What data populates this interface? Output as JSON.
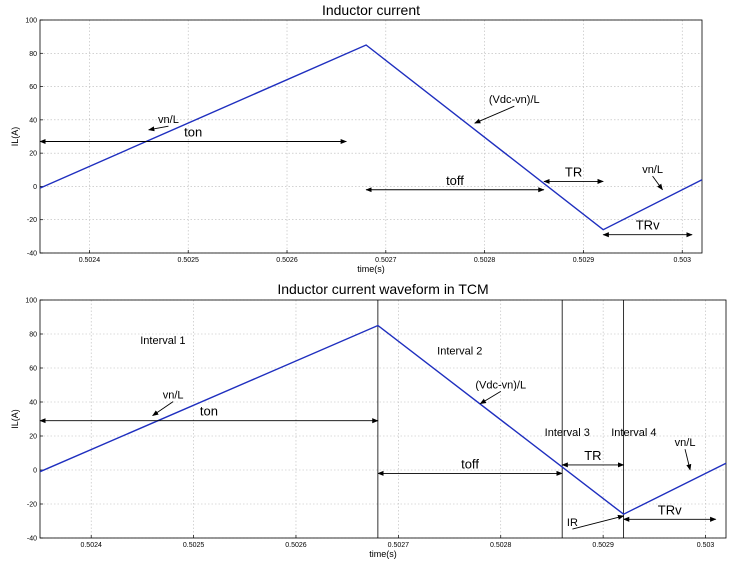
{
  "chart_data": [
    {
      "type": "line",
      "title": "Inductor current",
      "xlabel": "time(s)",
      "ylabel": "IL(A)",
      "xlim": [
        0.50235,
        0.50302
      ],
      "ylim": [
        -40,
        100
      ],
      "xticks": [
        0.5024,
        0.5025,
        0.5026,
        0.5027,
        0.5028,
        0.5029,
        0.503
      ],
      "xtick_labels": [
        "0.5024",
        "0.5025",
        "0.5026",
        "0.5027",
        "0.5028",
        "0.5029",
        "0.503"
      ],
      "yticks": [
        -40,
        -20,
        0,
        20,
        40,
        60,
        80,
        100
      ],
      "ytick_labels": [
        "-40",
        "-20",
        "0",
        "20",
        "40",
        "60",
        "80",
        "100"
      ],
      "grid": true,
      "series": [
        {
          "color": "#1f2fbf",
          "x": [
            0.50235,
            0.50268,
            0.50292,
            0.50302
          ],
          "y": [
            -1,
            85,
            -26,
            4
          ]
        }
      ],
      "annotations": [
        {
          "text": "vn/L",
          "at": [
            0.50248,
            38
          ],
          "kind": "label-pointer",
          "point": [
            0.50246,
            34
          ]
        },
        {
          "text": "(Vdc-vn)/L",
          "at": [
            0.50283,
            50
          ],
          "kind": "label-pointer",
          "point": [
            0.50279,
            38
          ]
        },
        {
          "text": "vn/L",
          "at": [
            0.50297,
            8
          ],
          "kind": "label-pointer",
          "point": [
            0.50298,
            -2
          ]
        },
        {
          "text": "ton",
          "kind": "span",
          "x1": 0.50235,
          "x2": 0.50266,
          "y": 27
        },
        {
          "text": "toff",
          "kind": "span",
          "x1": 0.50268,
          "x2": 0.50286,
          "y": -2
        },
        {
          "text": "TR",
          "kind": "span",
          "x1": 0.50286,
          "x2": 0.50292,
          "y": 3
        },
        {
          "text": "TRv",
          "kind": "span",
          "x1": 0.50292,
          "x2": 0.50301,
          "y": -29
        }
      ]
    },
    {
      "type": "line",
      "title": "Inductor current waveform in TCM",
      "xlabel": "time(s)",
      "ylabel": "IL(A)",
      "xlim": [
        0.50235,
        0.50302
      ],
      "ylim": [
        -40,
        100
      ],
      "xticks": [
        0.5024,
        0.5025,
        0.5026,
        0.5027,
        0.5028,
        0.5029,
        0.503
      ],
      "xtick_labels": [
        "0.5024",
        "0.5025",
        "0.5026",
        "0.5027",
        "0.5028",
        "0.5029",
        "0.503"
      ],
      "yticks": [
        -40,
        -20,
        0,
        20,
        40,
        60,
        80,
        100
      ],
      "ytick_labels": [
        "-40",
        "-20",
        "0",
        "20",
        "40",
        "60",
        "80",
        "100"
      ],
      "grid": true,
      "series": [
        {
          "color": "#1f2fbf",
          "x": [
            0.50235,
            0.50268,
            0.50292,
            0.50302
          ],
          "y": [
            -1,
            85,
            -26,
            4
          ]
        }
      ],
      "vlines": [
        0.50268,
        0.50286,
        0.50292
      ],
      "annotations": [
        {
          "text": "Interval 1",
          "at": [
            0.50247,
            74
          ],
          "kind": "label"
        },
        {
          "text": "Interval 2",
          "at": [
            0.50276,
            68
          ],
          "kind": "label"
        },
        {
          "text": "Interval 3",
          "at": [
            0.502865,
            20
          ],
          "kind": "label"
        },
        {
          "text": "Interval 4",
          "at": [
            0.50293,
            20
          ],
          "kind": "label"
        },
        {
          "text": "vn/L",
          "at": [
            0.50248,
            42
          ],
          "kind": "label-pointer",
          "point": [
            0.50246,
            32
          ]
        },
        {
          "text": "(Vdc-vn)/L",
          "at": [
            0.5028,
            48
          ],
          "kind": "label-pointer",
          "point": [
            0.50278,
            39
          ]
        },
        {
          "text": "vn/L",
          "at": [
            0.50298,
            14
          ],
          "kind": "label-pointer",
          "point": [
            0.502985,
            0
          ]
        },
        {
          "text": "IR",
          "at": [
            0.50287,
            -33
          ],
          "kind": "label-pointer",
          "point": [
            0.50292,
            -27
          ]
        },
        {
          "text": "ton",
          "kind": "span",
          "x1": 0.50235,
          "x2": 0.50268,
          "y": 29
        },
        {
          "text": "toff",
          "kind": "span",
          "x1": 0.50268,
          "x2": 0.50286,
          "y": -2
        },
        {
          "text": "TR",
          "kind": "span",
          "x1": 0.50286,
          "x2": 0.50292,
          "y": 3
        },
        {
          "text": "TRv",
          "kind": "span",
          "x1": 0.50292,
          "x2": 0.50301,
          "y": -29
        }
      ]
    }
  ]
}
